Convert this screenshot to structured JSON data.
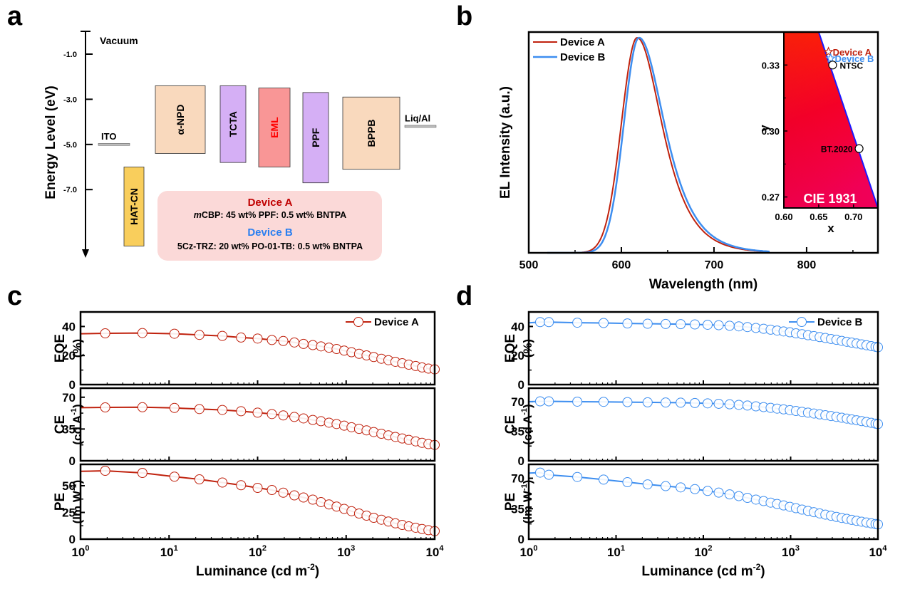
{
  "panel_labels": {
    "a": "a",
    "b": "b",
    "c": "c",
    "d": "d"
  },
  "colors": {
    "device_a": "#c0220e",
    "device_b": "#3d8ef0",
    "htl_peach": "#f9d9bd",
    "purple": "#d5aff5",
    "eml": "#f99696",
    "hatcn": "#f9ce5c",
    "box_bg": "#fbd9d8",
    "electrode": "#bdbdbd",
    "device_a_text": "#c00000",
    "device_b_text": "#2a7ff0"
  },
  "chart_data": [
    {
      "id": "a",
      "type": "energy_diagram",
      "ylabel": "Energy Level (eV)",
      "ylim": [
        0,
        -10.0
      ],
      "yticks": [
        -1.0,
        -3.0,
        -5.0,
        -7.0
      ],
      "ytick_labels": [
        "-1.0",
        "-3.0",
        "-5.0",
        "-7.0"
      ],
      "vacuum_label": "Vacuum",
      "electrodes": [
        {
          "name": "ITO",
          "level": -5.0
        },
        {
          "name": "Liq/Al",
          "level": -4.2
        }
      ],
      "layers": [
        {
          "name": "HAT-CN",
          "top": -6.0,
          "bottom": -9.5,
          "color": "hatcn",
          "label_color": "#000000"
        },
        {
          "name": "α-NPD",
          "top": -2.4,
          "bottom": -5.4,
          "color": "htl_peach",
          "label_color": "#000000"
        },
        {
          "name": "TCTA",
          "top": -2.4,
          "bottom": -5.8,
          "color": "purple",
          "label_color": "#000000"
        },
        {
          "name": "EML",
          "top": -2.5,
          "bottom": -6.0,
          "color": "eml",
          "label_color": "#ff0000"
        },
        {
          "name": "PPF",
          "top": -2.7,
          "bottom": -6.7,
          "color": "purple",
          "label_color": "#000000"
        },
        {
          "name": "BPPB",
          "top": -2.9,
          "bottom": -6.1,
          "color": "htl_peach",
          "label_color": "#000000"
        }
      ],
      "info_box": {
        "device_a_title": "Device A",
        "device_a_prefix": "m",
        "device_a_text": "CBP: 45 wt% PPF: 0.5 wt% BNTPA",
        "device_b_title": "Device B",
        "device_b_text": "5Cz-TRZ: 20 wt% PO-01-TB: 0.5 wt% BNTPA"
      }
    },
    {
      "id": "b",
      "type": "line",
      "xlabel": "Wavelength (nm)",
      "ylabel": "EL Intensity (a.u.)",
      "xlim": [
        500,
        877
      ],
      "xticks": [
        500,
        600,
        700,
        800
      ],
      "ylim": [
        0,
        1
      ],
      "legend": "top-left",
      "series": [
        {
          "name": "Device A",
          "color": "device_a",
          "peak_nm": 617,
          "fwhm_left": 25,
          "fwhm_right": 36
        },
        {
          "name": "Device B",
          "color": "device_b",
          "peak_nm": 619,
          "fwhm_left": 24,
          "fwhm_right": 37
        }
      ],
      "inset": {
        "title": "CIE 1931",
        "xlabel": "x",
        "ylabel": "y",
        "xlim": [
          0.6,
          0.735
        ],
        "ylim": [
          0.265,
          0.345
        ],
        "xticks": [
          0.6,
          0.65,
          0.7
        ],
        "xtick_labels": [
          "0.60",
          "0.65",
          "0.70"
        ],
        "yticks": [
          0.27,
          0.3,
          0.33
        ],
        "ytick_labels": [
          "0.27",
          "0.30",
          "0.33"
        ],
        "points": [
          {
            "label": "Device A",
            "x": 0.664,
            "y": 0.336,
            "marker": "star",
            "color": "device_a"
          },
          {
            "label": "Device B",
            "x": 0.667,
            "y": 0.333,
            "marker": "star",
            "color": "device_b"
          },
          {
            "label": "NTSC",
            "x": 0.67,
            "y": 0.33,
            "marker": "circle",
            "color": "#000000"
          },
          {
            "label": "BT.2020",
            "x": 0.708,
            "y": 0.292,
            "marker": "circle",
            "color": "#000000"
          }
        ]
      }
    },
    {
      "id": "c",
      "type": "scatter",
      "device": "Device A",
      "color": "device_a",
      "xlabel": "Luminance (cd m-2)",
      "xlim_log10": [
        0,
        4
      ],
      "xtick_labels": [
        "10^0",
        "10^1",
        "10^2",
        "10^3",
        "10^4"
      ],
      "legend": "top-right",
      "subplots": [
        {
          "ylabel": "EQE",
          "yunit": "(%)",
          "ylim": [
            0,
            50
          ],
          "yticks": [
            0,
            20,
            40
          ],
          "x": [
            1,
            1.9,
            5,
            11.5,
            22,
            40,
            65,
            100,
            145,
            195,
            260,
            330,
            420,
            520,
            640,
            780,
            950,
            1150,
            1400,
            1700,
            2050,
            2500,
            3000,
            3600,
            4300,
            5100,
            6100,
            7200,
            8500,
            10000
          ],
          "values": [
            35,
            35.3,
            35.5,
            35,
            34.2,
            33.5,
            32.4,
            31.7,
            30.7,
            30,
            29,
            28,
            27.2,
            26.3,
            25.4,
            24.5,
            23.4,
            22.3,
            21.2,
            20.1,
            19,
            17.8,
            16.8,
            15.7,
            14.7,
            13.7,
            12.8,
            11.8,
            11,
            10.5
          ]
        },
        {
          "ylabel": "CE",
          "yunit": "(cd A-1)",
          "ylim": [
            0,
            80
          ],
          "yticks": [
            0,
            35,
            70
          ],
          "x": [
            1,
            1.9,
            5,
            11.5,
            22,
            40,
            65,
            100,
            145,
            195,
            260,
            330,
            420,
            520,
            640,
            780,
            950,
            1150,
            1400,
            1700,
            2050,
            2500,
            3000,
            3600,
            4300,
            5100,
            6100,
            7200,
            8500,
            10000
          ],
          "values": [
            58.5,
            58.8,
            59,
            58.2,
            57,
            56,
            54.6,
            53,
            51.5,
            50,
            48.3,
            46.7,
            45,
            43.6,
            42,
            40.5,
            38.7,
            37,
            35.2,
            33.5,
            31.7,
            29.8,
            28,
            26.3,
            24.6,
            23,
            21.4,
            19.8,
            18.4,
            17.5
          ]
        },
        {
          "ylabel": "PE",
          "yunit": "(lm W-1)",
          "ylim": [
            0,
            70
          ],
          "yticks": [
            0,
            25,
            50
          ],
          "x": [
            1,
            1.9,
            5,
            11.5,
            22,
            40,
            65,
            100,
            145,
            195,
            260,
            330,
            420,
            520,
            640,
            780,
            950,
            1150,
            1400,
            1700,
            2050,
            2500,
            3000,
            3600,
            4300,
            5100,
            6100,
            7200,
            8500,
            10000
          ],
          "values": [
            63.5,
            64,
            62,
            58.5,
            56,
            53,
            50.5,
            48,
            46,
            43.5,
            41,
            39,
            37,
            34.7,
            32.5,
            30.5,
            28.3,
            26.2,
            24,
            22,
            20,
            18.2,
            16.5,
            14.8,
            13.3,
            12,
            10.7,
            9.5,
            8.4,
            7.5
          ]
        }
      ]
    },
    {
      "id": "d",
      "type": "scatter",
      "device": "Device B",
      "color": "device_b",
      "xlabel": "Luminance (cd m-2)",
      "xlim_log10": [
        0,
        4
      ],
      "xtick_labels": [
        "10^0",
        "10^1",
        "10^2",
        "10^3",
        "10^4"
      ],
      "legend": "top-right",
      "subplots": [
        {
          "ylabel": "EQE",
          "yunit": "(%)",
          "ylim": [
            0,
            50
          ],
          "yticks": [
            0,
            20,
            40
          ],
          "x": [
            1,
            1.35,
            1.7,
            3.6,
            7.2,
            13.5,
            23,
            37,
            55,
            80,
            112,
            150,
            200,
            255,
            320,
            400,
            490,
            590,
            700,
            830,
            980,
            1150,
            1350,
            1580,
            1850,
            2150,
            2500,
            2900,
            3350,
            3850,
            4400,
            5000,
            5700,
            6500,
            7400,
            8400,
            9400,
            10000
          ],
          "values": [
            42.5,
            43,
            43,
            42.6,
            42.4,
            42.1,
            41.9,
            41.7,
            41.6,
            41.4,
            41.2,
            40.9,
            40.5,
            40.1,
            39.6,
            39,
            38.4,
            37.8,
            37.2,
            36.6,
            36,
            35.3,
            34.7,
            34,
            33.4,
            32.7,
            32.1,
            31.4,
            30.8,
            30.1,
            29.5,
            28.9,
            28.3,
            27.7,
            27.1,
            26.5,
            26,
            25.7
          ]
        },
        {
          "ylabel": "CE",
          "yunit": "(cd A-1)",
          "ylim": [
            0,
            86
          ],
          "yticks": [
            0,
            35,
            70
          ],
          "x": [
            1,
            1.35,
            1.7,
            3.6,
            7.2,
            13.5,
            23,
            37,
            55,
            80,
            112,
            150,
            200,
            255,
            320,
            400,
            490,
            590,
            700,
            830,
            980,
            1150,
            1350,
            1580,
            1850,
            2150,
            2500,
            2900,
            3350,
            3850,
            4400,
            5000,
            5700,
            6500,
            7400,
            8400,
            9400,
            10000
          ],
          "values": [
            70,
            70.4,
            70.4,
            70,
            69.8,
            69.5,
            69.2,
            69,
            68.8,
            68.4,
            68,
            67.5,
            66.9,
            66.2,
            65.4,
            64.5,
            63.6,
            62.7,
            61.8,
            60.9,
            60,
            59,
            58,
            57,
            56,
            55,
            54,
            53,
            52,
            51,
            50,
            49,
            48,
            47,
            46,
            45,
            44,
            43.5
          ]
        },
        {
          "ylabel": "PE",
          "yunit": "(lm W-1)",
          "ylim": [
            0,
            86
          ],
          "yticks": [
            0,
            35,
            70
          ],
          "x": [
            1,
            1.35,
            1.7,
            3.6,
            7.2,
            13.5,
            23,
            37,
            55,
            80,
            112,
            150,
            200,
            255,
            320,
            400,
            490,
            590,
            700,
            830,
            980,
            1150,
            1350,
            1580,
            1850,
            2150,
            2500,
            2900,
            3350,
            3850,
            4400,
            5000,
            5700,
            6500,
            7400,
            8400,
            9400,
            10000
          ],
          "values": [
            76,
            76.5,
            74,
            71.5,
            68.5,
            65.5,
            63,
            61,
            59.5,
            57.5,
            55.5,
            53.5,
            51.5,
            49.5,
            47.5,
            45.5,
            43.8,
            42,
            40.4,
            38.8,
            37.2,
            35.6,
            34,
            32.5,
            31,
            29.6,
            28.2,
            26.9,
            25.6,
            24.4,
            23.3,
            22.2,
            21.1,
            20.1,
            19.1,
            18.2,
            17.4,
            17
          ]
        }
      ]
    }
  ]
}
